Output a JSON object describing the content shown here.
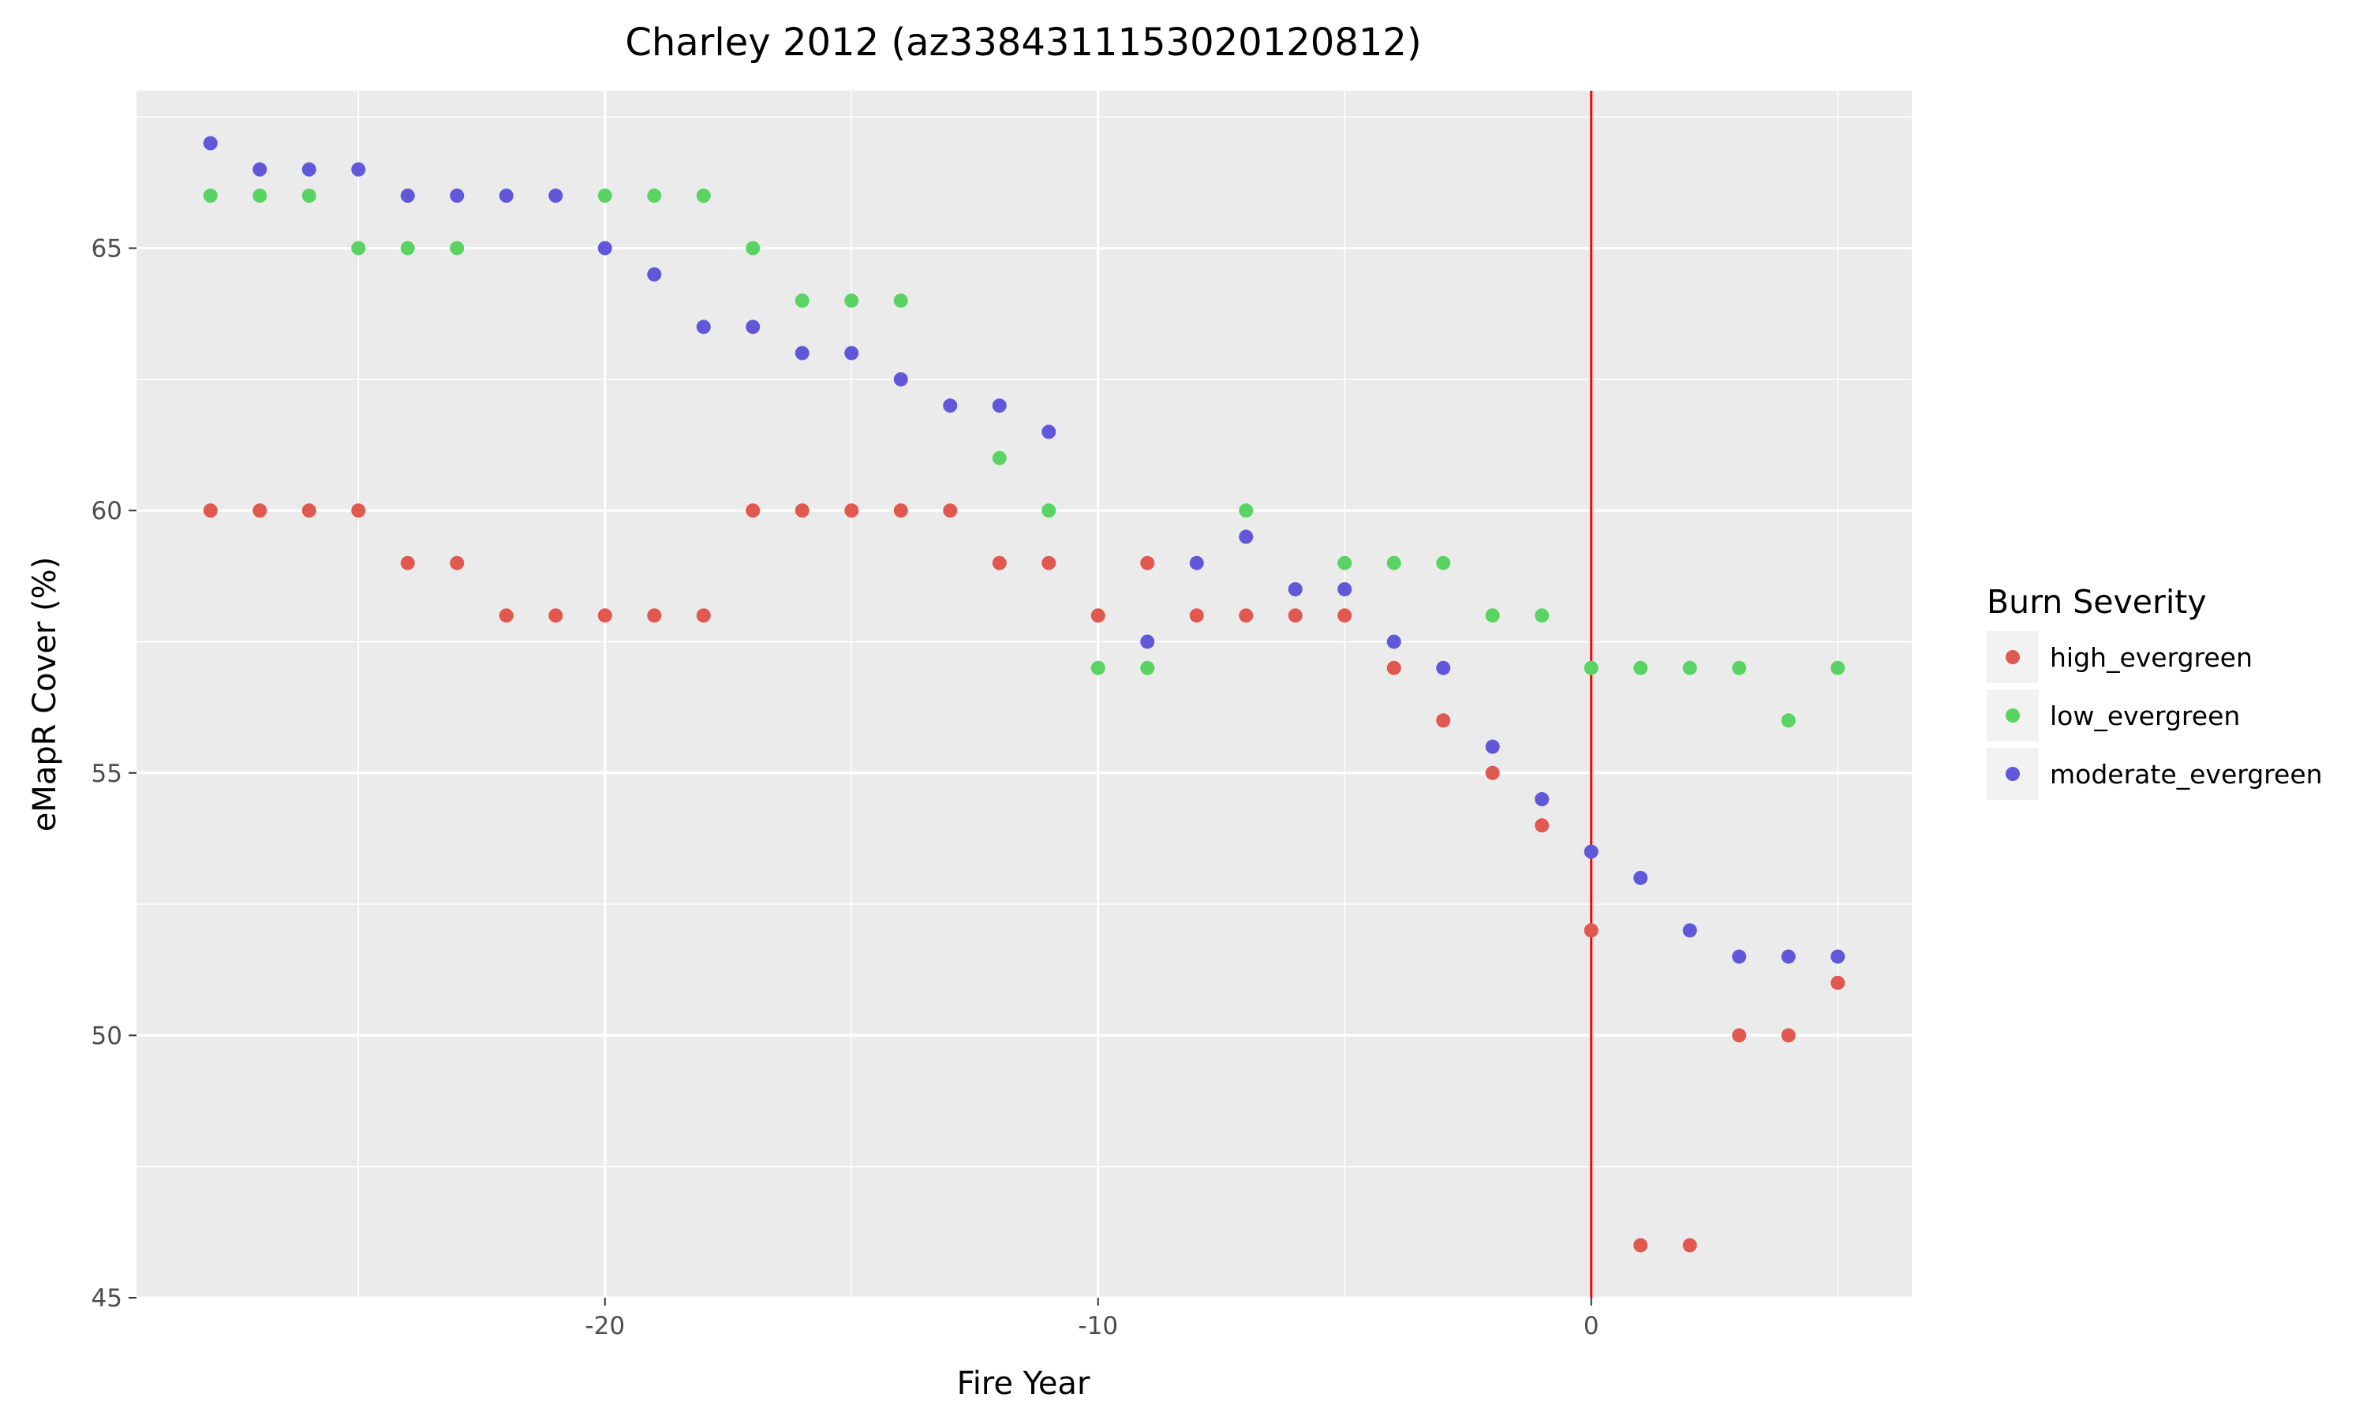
{
  "chart_data": {
    "type": "scatter",
    "title": "Charley 2012 (az3384311153020120812)",
    "xlabel": "Fire Year",
    "ylabel": "eMapR Cover (%)",
    "xlim": [
      -29.5,
      6.5
    ],
    "ylim": [
      45,
      68
    ],
    "x_ticks": [
      -20,
      -10,
      0
    ],
    "y_ticks": [
      45,
      50,
      55,
      60,
      65
    ],
    "grid": true,
    "vline": {
      "x": 0,
      "color": "#ff0000"
    },
    "legend": {
      "title": "Burn Severity",
      "position": "right"
    },
    "series": [
      {
        "name": "high_evergreen",
        "color": "#e0584f",
        "x": [
          -28,
          -27,
          -26,
          -25,
          -24,
          -23,
          -22,
          -21,
          -20,
          -19,
          -18,
          -17,
          -16,
          -15,
          -14,
          -13,
          -12,
          -11,
          -10,
          -9,
          -8,
          -7,
          -6,
          -5,
          -4,
          -3,
          -2,
          -1,
          0,
          1,
          2,
          3,
          4,
          5
        ],
        "y": [
          60,
          60,
          60,
          60,
          59,
          59,
          58,
          58,
          58,
          58,
          58,
          60,
          60,
          60,
          60,
          60,
          59,
          59,
          58,
          59,
          58,
          58,
          58,
          58,
          57,
          56,
          55,
          54,
          52,
          46,
          46,
          50,
          50,
          51
        ]
      },
      {
        "name": "low_evergreen",
        "color": "#59d462",
        "x": [
          -28,
          -27,
          -26,
          -25,
          -24,
          -23,
          -20,
          -19,
          -18,
          -17,
          -16,
          -15,
          -14,
          -12,
          -11,
          -10,
          -9,
          -7,
          -5,
          -4,
          -3,
          -2,
          -1,
          0,
          1,
          2,
          3,
          4,
          5
        ],
        "y": [
          66,
          66,
          66,
          65,
          65,
          65,
          66,
          66,
          66,
          65,
          64,
          64,
          64,
          61,
          60,
          57,
          57,
          60,
          59,
          59,
          59,
          58,
          58,
          57,
          57,
          57,
          57,
          56,
          57
        ]
      },
      {
        "name": "moderate_evergreen",
        "color": "#6158d9",
        "x": [
          -28,
          -27,
          -26,
          -25,
          -24,
          -23,
          -22,
          -21,
          -20,
          -19,
          -18,
          -17,
          -16,
          -15,
          -14,
          -13,
          -12,
          -11,
          -9,
          -8,
          -7,
          -6,
          -5,
          -4,
          -3,
          -2,
          -1,
          0,
          1,
          2,
          3,
          4,
          5
        ],
        "y": [
          67,
          66.5,
          66.5,
          66.5,
          66,
          66,
          66,
          66,
          65,
          64.5,
          63.5,
          63.5,
          63,
          63,
          62.5,
          62,
          62,
          61.5,
          57.5,
          59,
          59.5,
          58.5,
          58.5,
          57.5,
          57,
          55.5,
          54.5,
          53.5,
          53,
          52,
          51.5,
          51.5,
          51.5
        ]
      }
    ]
  }
}
